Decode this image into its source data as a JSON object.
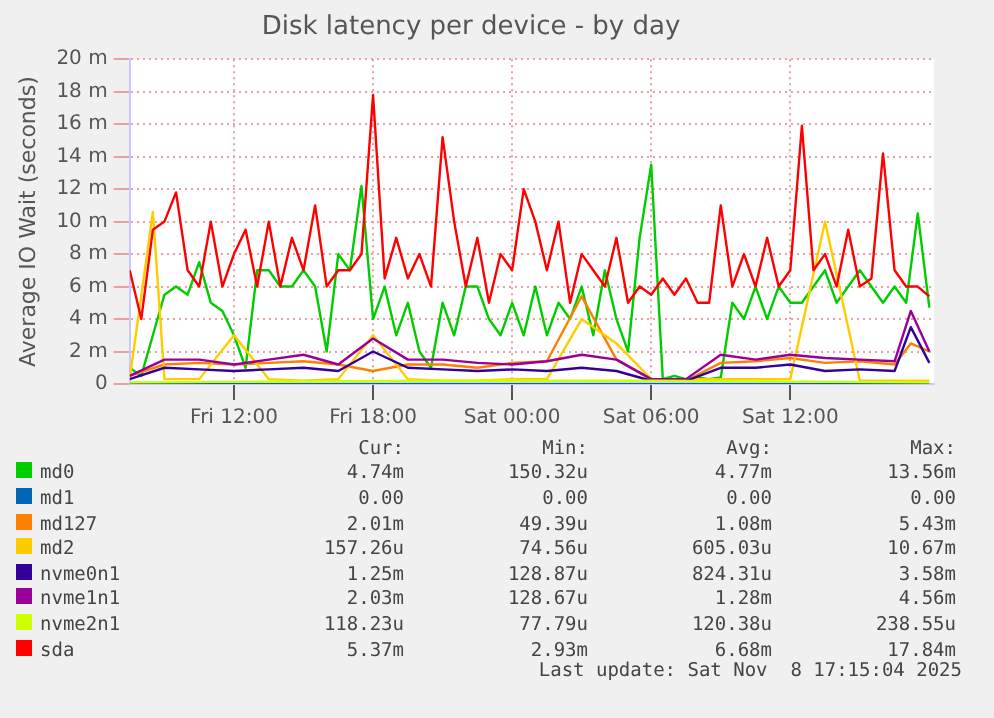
{
  "chart_data": {
    "type": "line",
    "title": "Disk latency per device - by day",
    "ylabel": "Average IO Wait (seconds)",
    "xlim": [
      "2025-11-07T07:30",
      "2025-11-08T18:12"
    ],
    "xticks": [
      {
        "value": "2025-11-07T12:00",
        "label": "Fri 12:00"
      },
      {
        "value": "2025-11-07T18:00",
        "label": "Fri 18:00"
      },
      {
        "value": "2025-11-08T00:00",
        "label": "Sat 00:00"
      },
      {
        "value": "2025-11-08T06:00",
        "label": "Sat 06:00"
      },
      {
        "value": "2025-11-08T12:00",
        "label": "Sat 12:00"
      }
    ],
    "ylim": [
      0,
      20
    ],
    "yticks": [
      0,
      {
        "value": 2,
        "label": "2 m"
      },
      {
        "value": 4,
        "label": "4 m"
      },
      {
        "value": 6,
        "label": "6 m"
      },
      {
        "value": 8,
        "label": "8 m"
      },
      {
        "value": 10,
        "label": "10 m"
      },
      {
        "value": 12,
        "label": "12 m"
      },
      {
        "value": 14,
        "label": "14 m"
      },
      {
        "value": 16,
        "label": "16 m"
      },
      {
        "value": 18,
        "label": "18 m"
      },
      {
        "value": 20,
        "label": "20 m"
      }
    ],
    "grid": true,
    "legend": "bottom",
    "marker": "none",
    "line_style": "solid",
    "x": [
      "2025-11-07T07:30",
      "2025-11-07T08:00",
      "2025-11-07T08:30",
      "2025-11-07T09:00",
      "2025-11-07T09:30",
      "2025-11-07T10:00",
      "2025-11-07T10:30",
      "2025-11-07T11:00",
      "2025-11-07T11:30",
      "2025-11-07T12:00",
      "2025-11-07T12:30",
      "2025-11-07T13:00",
      "2025-11-07T13:30",
      "2025-11-07T14:00",
      "2025-11-07T14:30",
      "2025-11-07T15:00",
      "2025-11-07T15:30",
      "2025-11-07T16:00",
      "2025-11-07T16:30",
      "2025-11-07T17:00",
      "2025-11-07T17:30",
      "2025-11-07T18:00",
      "2025-11-07T18:30",
      "2025-11-07T19:00",
      "2025-11-07T19:30",
      "2025-11-07T20:00",
      "2025-11-07T20:30",
      "2025-11-07T21:00",
      "2025-11-07T21:30",
      "2025-11-07T22:00",
      "2025-11-07T22:30",
      "2025-11-07T23:00",
      "2025-11-07T23:30",
      "2025-11-08T00:00",
      "2025-11-08T00:30",
      "2025-11-08T01:00",
      "2025-11-08T01:30",
      "2025-11-08T02:00",
      "2025-11-08T02:30",
      "2025-11-08T03:00",
      "2025-11-08T03:30",
      "2025-11-08T04:00",
      "2025-11-08T04:30",
      "2025-11-08T05:00",
      "2025-11-08T05:30",
      "2025-11-08T06:00",
      "2025-11-08T06:30",
      "2025-11-08T07:00",
      "2025-11-08T07:30",
      "2025-11-08T08:00",
      "2025-11-08T08:30",
      "2025-11-08T09:00",
      "2025-11-08T09:30",
      "2025-11-08T10:00",
      "2025-11-08T10:30",
      "2025-11-08T11:00",
      "2025-11-08T11:30",
      "2025-11-08T12:00",
      "2025-11-08T12:30",
      "2025-11-08T13:00",
      "2025-11-08T13:30",
      "2025-11-08T14:00",
      "2025-11-08T14:30",
      "2025-11-08T15:00",
      "2025-11-08T15:30",
      "2025-11-08T16:00",
      "2025-11-08T16:30",
      "2025-11-08T17:00",
      "2025-11-08T17:30",
      "2025-11-08T18:00"
    ],
    "series": [
      {
        "name": "md0",
        "color": "#00cc00",
        "values": [
          1,
          0.5,
          3,
          5.5,
          6,
          5.5,
          7.5,
          5,
          4.5,
          3,
          1,
          7,
          7,
          6,
          6,
          7,
          6,
          2,
          8,
          7,
          12.2,
          4,
          6,
          3,
          5,
          2,
          1,
          5,
          3,
          6,
          6,
          4,
          3,
          5,
          3,
          6,
          3,
          5,
          4,
          6,
          3,
          7,
          4,
          2,
          9,
          13.5,
          0.3,
          0.5,
          0.3,
          0.4,
          0.3,
          0.4,
          5,
          4,
          6,
          4,
          6,
          5,
          5,
          6,
          7,
          5,
          6,
          7,
          6,
          5,
          6,
          5,
          10.5,
          4.7
        ]
      },
      {
        "name": "md1",
        "color": "#0066b3",
        "x": [
          "2025-11-07T07:30",
          "2025-11-08T18:00"
        ],
        "values": [
          0,
          0
        ]
      },
      {
        "name": "md127",
        "color": "#ff8000",
        "x": [
          "2025-11-07T07:30",
          "2025-11-07T09:00",
          "2025-11-07T10:30",
          "2025-11-07T12:00",
          "2025-11-07T13:30",
          "2025-11-07T15:00",
          "2025-11-07T16:30",
          "2025-11-07T18:00",
          "2025-11-07T19:30",
          "2025-11-07T21:00",
          "2025-11-07T22:30",
          "2025-11-08T00:00",
          "2025-11-08T01:30",
          "2025-11-08T03:00",
          "2025-11-08T04:30",
          "2025-11-08T06:00",
          "2025-11-08T07:30",
          "2025-11-08T09:00",
          "2025-11-08T10:30",
          "2025-11-08T12:00",
          "2025-11-08T13:30",
          "2025-11-08T15:00",
          "2025-11-08T16:30",
          "2025-11-08T17:12",
          "2025-11-08T18:00"
        ],
        "values": [
          0.5,
          1.2,
          1.3,
          1.2,
          1.3,
          1.4,
          1.2,
          0.8,
          1.2,
          1.2,
          1,
          1.3,
          1.4,
          5.4,
          1.5,
          0.3,
          0.2,
          1.3,
          1.4,
          1.6,
          1.3,
          1.4,
          1.2,
          2.5,
          2
        ]
      },
      {
        "name": "md2",
        "color": "#ffcc00",
        "x": [
          "2025-11-07T07:30",
          "2025-11-07T08:30",
          "2025-11-07T09:00",
          "2025-11-07T10:30",
          "2025-11-07T12:00",
          "2025-11-07T13:30",
          "2025-11-07T15:00",
          "2025-11-07T16:30",
          "2025-11-07T18:00",
          "2025-11-07T19:30",
          "2025-11-07T21:00",
          "2025-11-07T22:30",
          "2025-11-08T00:00",
          "2025-11-08T01:30",
          "2025-11-08T03:00",
          "2025-11-08T04:30",
          "2025-11-08T06:00",
          "2025-11-08T07:30",
          "2025-11-08T09:00",
          "2025-11-08T10:30",
          "2025-11-08T12:00",
          "2025-11-08T13:30",
          "2025-11-08T15:00",
          "2025-11-08T16:30",
          "2025-11-08T18:00"
        ],
        "values": [
          0.3,
          10.6,
          0.3,
          0.3,
          3,
          0.3,
          0.2,
          0.3,
          3,
          0.3,
          0.2,
          0.2,
          0.3,
          0.3,
          4,
          2.5,
          0.3,
          0.3,
          0.3,
          0.3,
          0.3,
          10,
          0.2,
          0.2,
          0.2
        ]
      },
      {
        "name": "nvme0n1",
        "color": "#330099",
        "x": [
          "2025-11-07T07:30",
          "2025-11-07T09:00",
          "2025-11-07T10:30",
          "2025-11-07T12:00",
          "2025-11-07T13:30",
          "2025-11-07T15:00",
          "2025-11-07T16:30",
          "2025-11-07T18:00",
          "2025-11-07T19:30",
          "2025-11-07T21:00",
          "2025-11-07T22:30",
          "2025-11-08T00:00",
          "2025-11-08T01:30",
          "2025-11-08T03:00",
          "2025-11-08T04:30",
          "2025-11-08T06:00",
          "2025-11-08T07:30",
          "2025-11-08T09:00",
          "2025-11-08T10:30",
          "2025-11-08T12:00",
          "2025-11-08T13:30",
          "2025-11-08T15:00",
          "2025-11-08T16:30",
          "2025-11-08T17:12",
          "2025-11-08T18:00"
        ],
        "values": [
          0.3,
          1,
          0.9,
          0.8,
          0.9,
          1,
          0.8,
          2,
          1,
          0.9,
          0.8,
          0.9,
          0.8,
          1,
          0.8,
          0.2,
          0.2,
          1,
          1,
          1.2,
          0.8,
          0.9,
          0.8,
          3.5,
          1.3
        ]
      },
      {
        "name": "nvme1n1",
        "color": "#990099",
        "x": [
          "2025-11-07T07:30",
          "2025-11-07T09:00",
          "2025-11-07T10:30",
          "2025-11-07T12:00",
          "2025-11-07T13:30",
          "2025-11-07T15:00",
          "2025-11-07T16:30",
          "2025-11-07T18:00",
          "2025-11-07T19:30",
          "2025-11-07T21:00",
          "2025-11-07T22:30",
          "2025-11-08T00:00",
          "2025-11-08T01:30",
          "2025-11-08T03:00",
          "2025-11-08T04:30",
          "2025-11-08T06:00",
          "2025-11-08T07:30",
          "2025-11-08T09:00",
          "2025-11-08T10:30",
          "2025-11-08T12:00",
          "2025-11-08T13:30",
          "2025-11-08T15:00",
          "2025-11-08T16:30",
          "2025-11-08T17:12",
          "2025-11-08T18:00"
        ],
        "values": [
          0.5,
          1.5,
          1.5,
          1.2,
          1.5,
          1.8,
          1.2,
          2.8,
          1.5,
          1.5,
          1.3,
          1.2,
          1.4,
          1.8,
          1.5,
          0.3,
          0.3,
          1.8,
          1.5,
          1.8,
          1.6,
          1.5,
          1.4,
          4.5,
          2
        ]
      },
      {
        "name": "nvme2n1",
        "color": "#ccff00",
        "x": [
          "2025-11-07T07:30",
          "2025-11-07T20:00",
          "2025-11-08T06:00",
          "2025-11-08T18:00"
        ],
        "values": [
          0.1,
          0.2,
          0.2,
          0.1
        ]
      },
      {
        "name": "sda",
        "color": "#ff0000",
        "values": [
          7,
          4,
          9.5,
          10,
          11.8,
          7,
          6,
          10,
          6,
          8,
          9.5,
          6,
          10,
          6,
          9,
          7,
          11,
          6,
          7,
          7,
          8,
          17.8,
          6.5,
          9,
          6.5,
          8,
          6,
          15.2,
          10,
          6,
          9,
          5,
          8,
          7,
          12,
          10,
          7,
          10,
          5,
          8,
          7,
          6,
          9,
          5,
          6,
          5.5,
          6.5,
          5.5,
          6.5,
          5,
          5,
          11,
          6,
          8,
          6,
          9,
          6,
          7,
          15.9,
          7,
          8,
          6,
          9.5,
          6,
          6.5,
          14.2,
          7,
          6,
          6,
          5.4
        ]
      }
    ],
    "annotations": [
      "Cur:",
      "Min:",
      "Avg:",
      "Max:",
      "4.74m",
      "150.32u",
      "4.77m",
      "13.56m",
      "0.00",
      "0.00",
      "0.00",
      "0.00",
      "2.01m",
      "49.39u",
      "1.08m",
      "5.43m",
      "157.26u",
      "74.56u",
      "605.03u",
      "10.67m",
      "1.25m",
      "128.87u",
      "824.31u",
      "3.58m",
      "2.03m",
      "128.67u",
      "1.28m",
      "4.56m",
      "118.23u",
      "77.79u",
      "120.38u",
      "238.55u",
      "5.37m",
      "2.93m",
      "6.68m",
      "17.84m",
      "Last update: Sat Nov  8 17:15:04 2025"
    ]
  }
}
